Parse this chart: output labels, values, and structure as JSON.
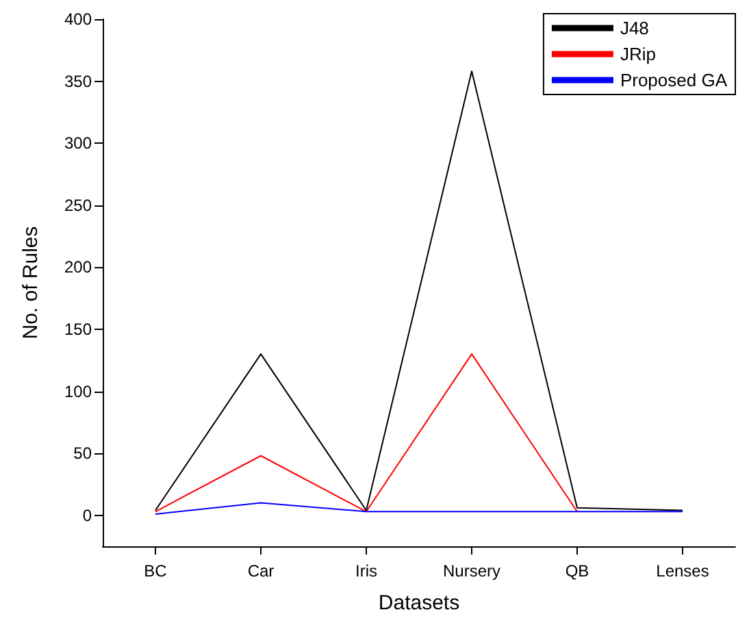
{
  "chart_data": {
    "type": "line",
    "xlabel": "Datasets",
    "ylabel": "No. of Rules",
    "categories": [
      "BC",
      "Car",
      "Iris",
      "Nursery",
      "QB",
      "Lenses"
    ],
    "series": [
      {
        "name": "J48",
        "color": "#000000",
        "values": [
          4,
          130,
          4,
          358,
          6,
          4
        ]
      },
      {
        "name": "JRip",
        "color": "#ff0000",
        "values": [
          3,
          48,
          3,
          130,
          3,
          null
        ]
      },
      {
        "name": "Proposed GA",
        "color": "#0000ff",
        "values": [
          1,
          10,
          3,
          3,
          3,
          3
        ]
      }
    ],
    "ylim": [
      -25,
      400
    ],
    "yticks": [
      0,
      50,
      100,
      150,
      200,
      250,
      300,
      350,
      400
    ],
    "grid": false,
    "legend": "top right",
    "marker": "none",
    "line_style": "solid"
  }
}
